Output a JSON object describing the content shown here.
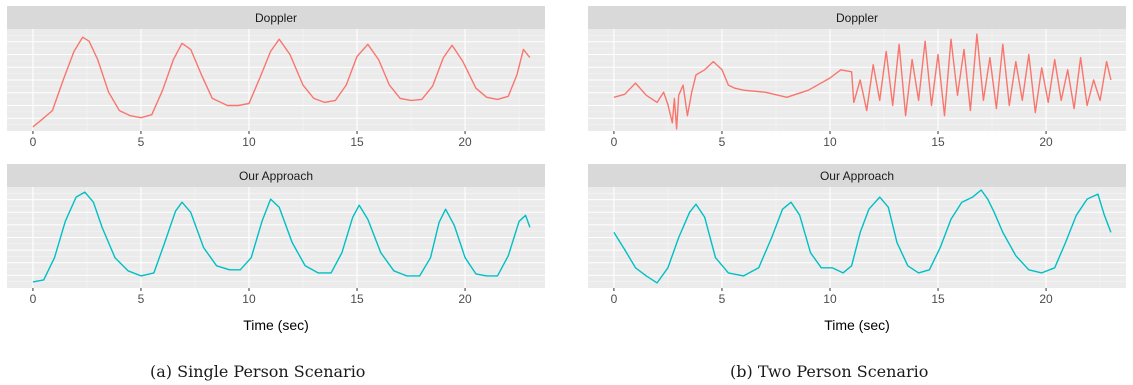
{
  "captions": {
    "a": "(a) Single Person Scenario",
    "b": "(b) Two Person Scenario"
  },
  "colors": {
    "doppler": "#F8766D",
    "ours": "#00BFC4"
  },
  "chart_data": [
    {
      "type": "line",
      "panel": "a-top",
      "strip_title": "Doppler",
      "xlabel": "",
      "xlim": [
        -1.2,
        23.7
      ],
      "ylim": [
        0,
        1
      ],
      "xticks": [
        0,
        5,
        10,
        15,
        20
      ],
      "grid": true,
      "series": [
        {
          "color": "#F8766D",
          "x": [
            0,
            0.4,
            0.9,
            1.4,
            1.9,
            2.3,
            2.6,
            3.0,
            3.5,
            4.0,
            4.5,
            5.0,
            5.5,
            6.0,
            6.5,
            6.9,
            7.3,
            7.8,
            8.3,
            9.0,
            9.5,
            10.0,
            10.5,
            11.0,
            11.4,
            11.9,
            12.5,
            13.0,
            13.5,
            14.0,
            14.5,
            15.0,
            15.5,
            16.0,
            16.5,
            17.0,
            17.5,
            18.0,
            18.5,
            19.0,
            19.4,
            19.9,
            20.5,
            21.0,
            21.5,
            22.0,
            22.4,
            22.7,
            23.0
          ],
          "y": [
            0.04,
            0.11,
            0.2,
            0.5,
            0.78,
            0.92,
            0.88,
            0.7,
            0.38,
            0.2,
            0.15,
            0.13,
            0.16,
            0.4,
            0.7,
            0.86,
            0.8,
            0.55,
            0.32,
            0.25,
            0.25,
            0.27,
            0.52,
            0.78,
            0.9,
            0.75,
            0.45,
            0.32,
            0.28,
            0.3,
            0.45,
            0.73,
            0.85,
            0.7,
            0.45,
            0.32,
            0.3,
            0.31,
            0.44,
            0.72,
            0.84,
            0.68,
            0.42,
            0.33,
            0.31,
            0.34,
            0.55,
            0.8,
            0.72
          ]
        }
      ]
    },
    {
      "type": "line",
      "panel": "a-bottom",
      "strip_title": "Our Approach",
      "xlabel": "Time (sec)",
      "xlim": [
        -1.2,
        23.7
      ],
      "ylim": [
        0,
        1
      ],
      "xticks": [
        0,
        5,
        10,
        15,
        20
      ],
      "grid": true,
      "series": [
        {
          "color": "#00BFC4",
          "x": [
            0,
            0.5,
            1.0,
            1.5,
            2.0,
            2.4,
            2.8,
            3.2,
            3.8,
            4.4,
            5.0,
            5.6,
            6.1,
            6.6,
            6.9,
            7.3,
            7.9,
            8.5,
            9.1,
            9.6,
            10.1,
            10.6,
            11.0,
            11.4,
            12.0,
            12.6,
            13.2,
            13.8,
            14.3,
            14.8,
            15.1,
            15.5,
            16.1,
            16.7,
            17.3,
            17.9,
            18.4,
            18.8,
            19.1,
            19.5,
            20.0,
            20.5,
            21.0,
            21.5,
            22.0,
            22.5,
            22.8,
            23.0
          ],
          "y": [
            0.06,
            0.08,
            0.3,
            0.66,
            0.9,
            0.95,
            0.85,
            0.6,
            0.3,
            0.17,
            0.12,
            0.15,
            0.45,
            0.76,
            0.85,
            0.75,
            0.4,
            0.22,
            0.18,
            0.18,
            0.3,
            0.66,
            0.88,
            0.8,
            0.45,
            0.22,
            0.15,
            0.15,
            0.35,
            0.7,
            0.82,
            0.68,
            0.35,
            0.17,
            0.12,
            0.12,
            0.3,
            0.65,
            0.78,
            0.62,
            0.3,
            0.14,
            0.12,
            0.12,
            0.32,
            0.66,
            0.72,
            0.6
          ]
        }
      ]
    },
    {
      "type": "line",
      "panel": "b-top",
      "strip_title": "Doppler",
      "xlabel": "",
      "xlim": [
        -1.2,
        23.7
      ],
      "ylim": [
        0,
        1
      ],
      "xticks": [
        0,
        5,
        10,
        15,
        20
      ],
      "grid": true,
      "series": [
        {
          "color": "#F8766D",
          "x": [
            0,
            0.5,
            1.0,
            1.5,
            2.0,
            2.3,
            2.5,
            2.7,
            2.8,
            2.9,
            3.0,
            3.2,
            3.4,
            3.6,
            3.8,
            4.2,
            4.6,
            5.0,
            5.3,
            5.6,
            6.0,
            7.0,
            8.0,
            9.0,
            10.0,
            10.5,
            11.0,
            11.1,
            11.4,
            11.7,
            12.0,
            12.3,
            12.6,
            12.9,
            13.2,
            13.5,
            13.8,
            14.1,
            14.4,
            14.7,
            15.0,
            15.3,
            15.6,
            15.9,
            16.2,
            16.5,
            16.8,
            17.1,
            17.4,
            17.7,
            18.0,
            18.3,
            18.6,
            18.9,
            19.2,
            19.5,
            19.8,
            20.1,
            20.4,
            20.7,
            21.0,
            21.3,
            21.6,
            21.9,
            22.2,
            22.5,
            22.8,
            23.0
          ],
          "y": [
            0.33,
            0.36,
            0.47,
            0.35,
            0.28,
            0.38,
            0.26,
            0.08,
            0.32,
            0.02,
            0.35,
            0.45,
            0.15,
            0.38,
            0.55,
            0.6,
            0.68,
            0.6,
            0.45,
            0.42,
            0.4,
            0.38,
            0.33,
            0.4,
            0.52,
            0.6,
            0.58,
            0.28,
            0.5,
            0.2,
            0.65,
            0.3,
            0.78,
            0.25,
            0.85,
            0.15,
            0.7,
            0.3,
            0.88,
            0.25,
            0.75,
            0.15,
            0.9,
            0.35,
            0.8,
            0.2,
            0.95,
            0.3,
            0.72,
            0.22,
            0.85,
            0.25,
            0.68,
            0.3,
            0.75,
            0.18,
            0.62,
            0.28,
            0.7,
            0.3,
            0.6,
            0.22,
            0.72,
            0.25,
            0.5,
            0.3,
            0.68,
            0.5
          ]
        }
      ]
    },
    {
      "type": "line",
      "panel": "b-bottom",
      "strip_title": "Our Approach",
      "xlabel": "Time (sec)",
      "xlim": [
        -1.2,
        23.7
      ],
      "ylim": [
        0,
        1
      ],
      "xticks": [
        0,
        5,
        10,
        15,
        20
      ],
      "grid": true,
      "series": [
        {
          "color": "#00BFC4",
          "x": [
            0,
            0.5,
            1.0,
            1.5,
            2.0,
            2.5,
            3.0,
            3.5,
            3.8,
            4.2,
            4.7,
            5.3,
            6.0,
            6.7,
            7.3,
            7.8,
            8.2,
            8.6,
            9.1,
            9.6,
            10.1,
            10.6,
            11.0,
            11.4,
            11.8,
            12.3,
            12.7,
            13.1,
            13.6,
            14.1,
            14.6,
            15.1,
            15.6,
            16.1,
            16.6,
            17.0,
            17.3,
            17.6,
            18.0,
            18.6,
            19.2,
            19.8,
            20.4,
            20.9,
            21.4,
            21.9,
            22.4,
            22.7,
            23.0
          ],
          "y": [
            0.55,
            0.38,
            0.2,
            0.12,
            0.05,
            0.2,
            0.5,
            0.75,
            0.83,
            0.7,
            0.3,
            0.15,
            0.12,
            0.2,
            0.5,
            0.78,
            0.85,
            0.72,
            0.35,
            0.2,
            0.2,
            0.15,
            0.22,
            0.55,
            0.78,
            0.9,
            0.8,
            0.45,
            0.22,
            0.15,
            0.18,
            0.4,
            0.68,
            0.85,
            0.9,
            0.97,
            0.88,
            0.75,
            0.55,
            0.32,
            0.18,
            0.15,
            0.2,
            0.45,
            0.72,
            0.88,
            0.93,
            0.72,
            0.55
          ]
        }
      ]
    }
  ]
}
